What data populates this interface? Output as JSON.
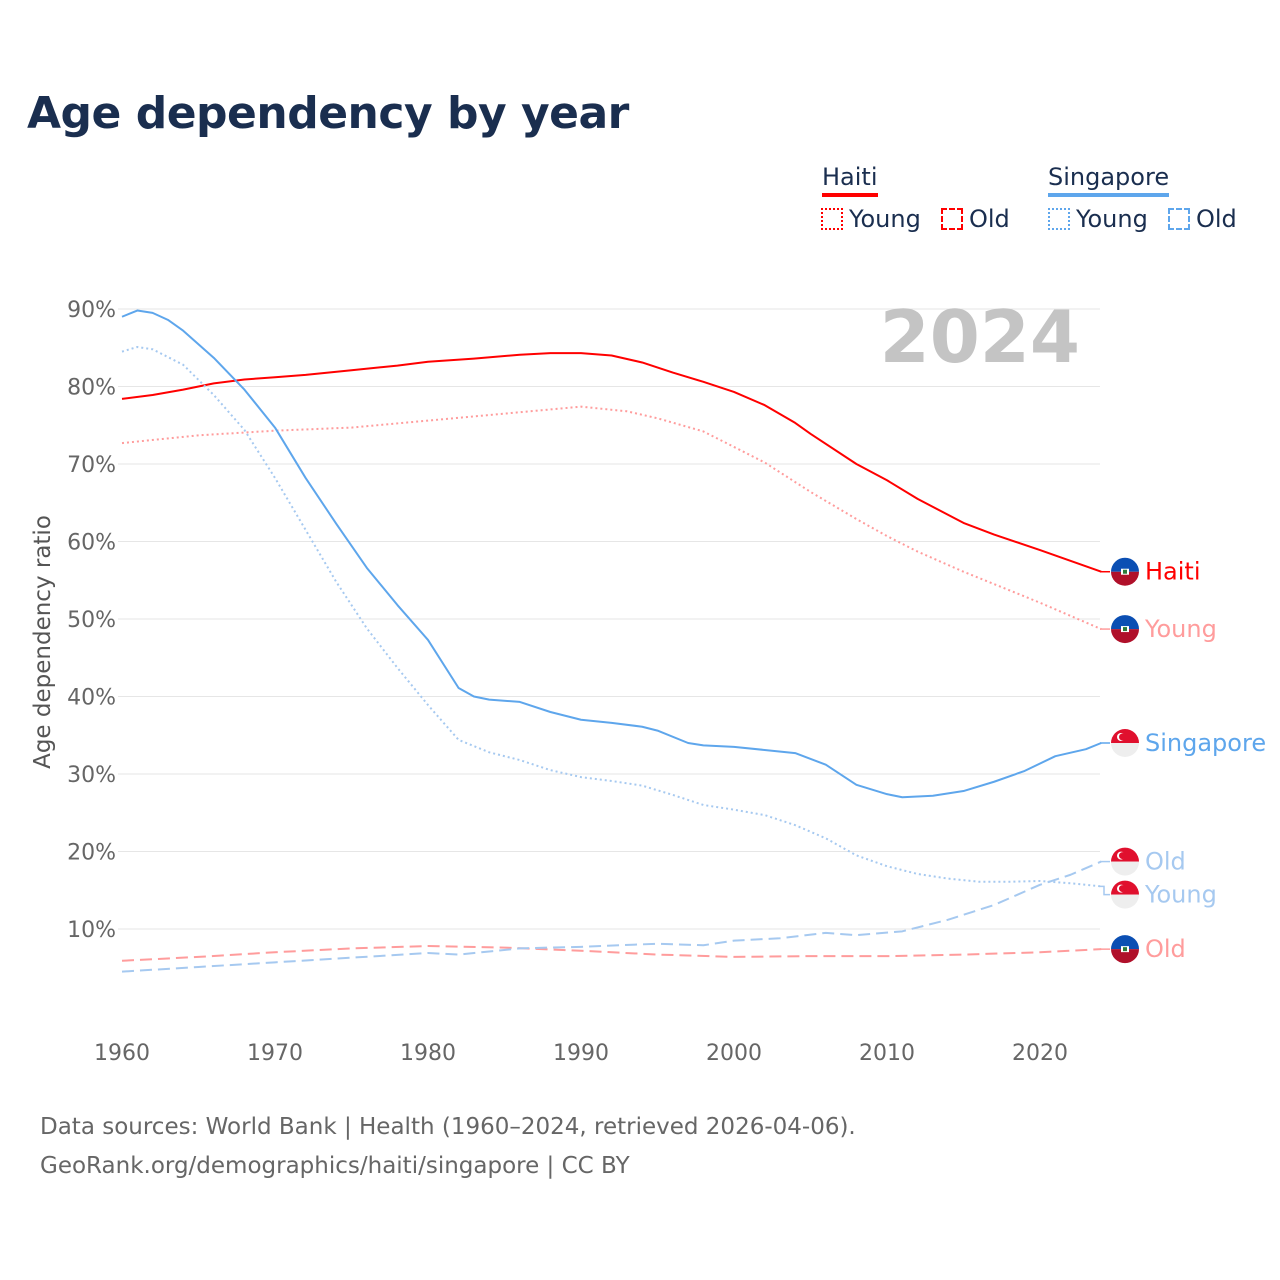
{
  "title": "Age dependency by year",
  "legend": {
    "groups": [
      {
        "name": "Haiti",
        "color": "#ff0000",
        "items": [
          "Young",
          "Old"
        ]
      },
      {
        "name": "Singapore",
        "color": "#5ea6ec",
        "items": [
          "Young",
          "Old"
        ]
      }
    ]
  },
  "year_watermark": "2024",
  "source_line1": "Data sources: World Bank | Health (1960–2024, retrieved 2026-04-06).",
  "source_line2": "GeoRank.org/demographics/haiti/singapore | CC BY",
  "chart_data": {
    "type": "line",
    "title": "Age dependency by year",
    "xlabel": "",
    "ylabel": "Age dependency ratio",
    "xlim": [
      1960,
      2024
    ],
    "ylim": [
      0,
      90
    ],
    "x_ticks": [
      "1960",
      "1970",
      "1980",
      "1990",
      "2000",
      "2010",
      "2020"
    ],
    "y_ticks": [
      "10%",
      "20%",
      "30%",
      "40%",
      "50%",
      "60%",
      "70%",
      "80%",
      "90%"
    ],
    "grid": true,
    "series": [
      {
        "name": "Haiti",
        "end_label": "Haiti",
        "country": "haiti",
        "color": "#ff0000",
        "style": "solid",
        "points": [
          [
            1960,
            78.4
          ],
          [
            1962,
            78.9
          ],
          [
            1964,
            79.6
          ],
          [
            1966,
            80.4
          ],
          [
            1968,
            80.9
          ],
          [
            1970,
            81.2
          ],
          [
            1972,
            81.5
          ],
          [
            1975,
            82.1
          ],
          [
            1978,
            82.7
          ],
          [
            1980,
            83.2
          ],
          [
            1983,
            83.6
          ],
          [
            1986,
            84.1
          ],
          [
            1988,
            84.3
          ],
          [
            1990,
            84.3
          ],
          [
            1992,
            84.0
          ],
          [
            1994,
            83.1
          ],
          [
            1996,
            81.8
          ],
          [
            1998,
            80.6
          ],
          [
            2000,
            79.3
          ],
          [
            2002,
            77.6
          ],
          [
            2004,
            75.3
          ],
          [
            2005,
            73.9
          ],
          [
            2008,
            70.0
          ],
          [
            2010,
            67.9
          ],
          [
            2012,
            65.5
          ],
          [
            2015,
            62.4
          ],
          [
            2017,
            60.9
          ],
          [
            2020,
            58.9
          ],
          [
            2024,
            56.1
          ]
        ]
      },
      {
        "name": "Haiti Young",
        "end_label": "Young",
        "country": "haiti",
        "color": "#ff9c9c",
        "style": "dotted",
        "points": [
          [
            1960,
            72.7
          ],
          [
            1965,
            73.7
          ],
          [
            1970,
            74.3
          ],
          [
            1975,
            74.7
          ],
          [
            1980,
            75.6
          ],
          [
            1985,
            76.5
          ],
          [
            1990,
            77.4
          ],
          [
            1993,
            76.8
          ],
          [
            1995,
            75.9
          ],
          [
            1998,
            74.2
          ],
          [
            2000,
            72.2
          ],
          [
            2002,
            70.2
          ],
          [
            2005,
            66.4
          ],
          [
            2008,
            62.9
          ],
          [
            2010,
            60.7
          ],
          [
            2012,
            58.7
          ],
          [
            2015,
            56.1
          ],
          [
            2018,
            53.7
          ],
          [
            2020,
            52.1
          ],
          [
            2024,
            48.7
          ]
        ]
      },
      {
        "name": "Haiti Old",
        "end_label": "Old",
        "country": "haiti",
        "color": "#ff9c9c",
        "style": "dashed",
        "points": [
          [
            1960,
            5.9
          ],
          [
            1965,
            6.4
          ],
          [
            1970,
            7.0
          ],
          [
            1975,
            7.5
          ],
          [
            1980,
            7.8
          ],
          [
            1985,
            7.6
          ],
          [
            1990,
            7.2
          ],
          [
            1995,
            6.7
          ],
          [
            2000,
            6.4
          ],
          [
            2005,
            6.5
          ],
          [
            2010,
            6.5
          ],
          [
            2015,
            6.7
          ],
          [
            2020,
            7.0
          ],
          [
            2024,
            7.4
          ]
        ]
      },
      {
        "name": "Singapore",
        "end_label": "Singapore",
        "country": "singapore",
        "color": "#5ea6ec",
        "style": "solid",
        "points": [
          [
            1960,
            89.0
          ],
          [
            1961,
            89.8
          ],
          [
            1962,
            89.5
          ],
          [
            1963,
            88.6
          ],
          [
            1964,
            87.2
          ],
          [
            1966,
            83.7
          ],
          [
            1968,
            79.6
          ],
          [
            1970,
            74.7
          ],
          [
            1972,
            68.2
          ],
          [
            1974,
            62.3
          ],
          [
            1976,
            56.6
          ],
          [
            1978,
            51.8
          ],
          [
            1980,
            47.3
          ],
          [
            1982,
            41.1
          ],
          [
            1983,
            40.0
          ],
          [
            1984,
            39.6
          ],
          [
            1986,
            39.3
          ],
          [
            1988,
            38.0
          ],
          [
            1990,
            37.0
          ],
          [
            1992,
            36.6
          ],
          [
            1994,
            36.1
          ],
          [
            1995,
            35.6
          ],
          [
            1997,
            34.0
          ],
          [
            1998,
            33.7
          ],
          [
            2000,
            33.5
          ],
          [
            2002,
            33.1
          ],
          [
            2004,
            32.7
          ],
          [
            2006,
            31.2
          ],
          [
            2008,
            28.6
          ],
          [
            2010,
            27.4
          ],
          [
            2011,
            27.0
          ],
          [
            2013,
            27.2
          ],
          [
            2015,
            27.8
          ],
          [
            2017,
            29.0
          ],
          [
            2019,
            30.4
          ],
          [
            2021,
            32.3
          ],
          [
            2023,
            33.2
          ],
          [
            2024,
            34.0
          ]
        ]
      },
      {
        "name": "Singapore Young",
        "end_label": "Young",
        "country": "singapore",
        "color": "#a6c9f0",
        "style": "dotted",
        "points": [
          [
            1960,
            84.5
          ],
          [
            1961,
            85.1
          ],
          [
            1962,
            84.8
          ],
          [
            1964,
            82.8
          ],
          [
            1966,
            78.9
          ],
          [
            1968,
            74.4
          ],
          [
            1970,
            68.2
          ],
          [
            1972,
            61.5
          ],
          [
            1974,
            54.8
          ],
          [
            1976,
            48.8
          ],
          [
            1978,
            43.7
          ],
          [
            1980,
            38.9
          ],
          [
            1982,
            34.4
          ],
          [
            1984,
            32.8
          ],
          [
            1986,
            31.8
          ],
          [
            1988,
            30.5
          ],
          [
            1990,
            29.6
          ],
          [
            1992,
            29.1
          ],
          [
            1994,
            28.5
          ],
          [
            1996,
            27.3
          ],
          [
            1998,
            26.0
          ],
          [
            2000,
            25.4
          ],
          [
            2002,
            24.7
          ],
          [
            2004,
            23.4
          ],
          [
            2006,
            21.7
          ],
          [
            2008,
            19.5
          ],
          [
            2010,
            18.1
          ],
          [
            2012,
            17.1
          ],
          [
            2014,
            16.5
          ],
          [
            2016,
            16.1
          ],
          [
            2018,
            16.1
          ],
          [
            2020,
            16.2
          ],
          [
            2022,
            15.9
          ],
          [
            2024,
            15.5
          ]
        ]
      },
      {
        "name": "Singapore Old",
        "end_label": "Old",
        "country": "singapore",
        "color": "#a6c9f0",
        "style": "dashed",
        "points": [
          [
            1960,
            4.5
          ],
          [
            1965,
            5.1
          ],
          [
            1970,
            5.7
          ],
          [
            1975,
            6.3
          ],
          [
            1980,
            6.9
          ],
          [
            1982,
            6.7
          ],
          [
            1986,
            7.5
          ],
          [
            1990,
            7.7
          ],
          [
            1995,
            8.1
          ],
          [
            1998,
            7.9
          ],
          [
            2000,
            8.5
          ],
          [
            2003,
            8.8
          ],
          [
            2006,
            9.5
          ],
          [
            2008,
            9.2
          ],
          [
            2011,
            9.7
          ],
          [
            2014,
            11.2
          ],
          [
            2017,
            13.1
          ],
          [
            2020,
            15.7
          ],
          [
            2022,
            17.0
          ],
          [
            2024,
            18.7
          ]
        ]
      }
    ]
  }
}
